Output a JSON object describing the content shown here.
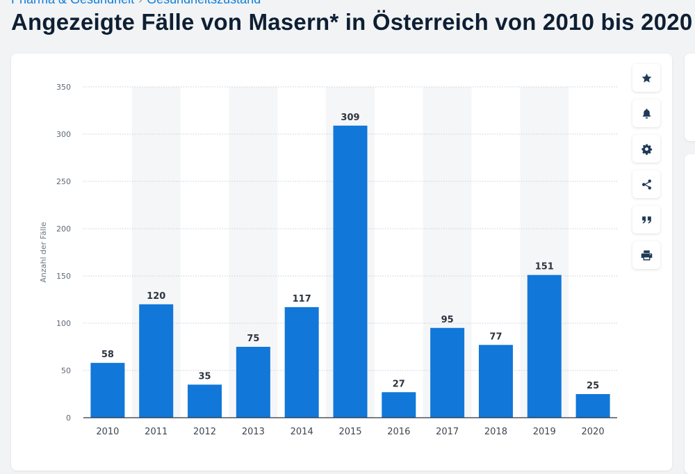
{
  "breadcrumb": {
    "first": "Pharma & Gesundheit",
    "second": "Gesundheitszustand"
  },
  "page": {
    "title": "Angezeigte Fälle von Masern* in Österreich von 2010 bis 2020"
  },
  "toolbar": {
    "favorite_icon": "star-icon",
    "alert_icon": "bell-icon",
    "settings_icon": "gear-icon",
    "share_icon": "share-icon",
    "cite_icon": "quote-icon",
    "print_icon": "printer-icon"
  },
  "colors": {
    "bar": "#1177d9",
    "accent": "#0f7ed8",
    "title": "#0e1f33"
  },
  "chart_data": {
    "type": "bar",
    "title": "Angezeigte Fälle von Masern* in Österreich von 2010 bis 2020",
    "xlabel": "",
    "ylabel": "Anzahl der Fälle",
    "categories": [
      "2010",
      "2011",
      "2012",
      "2013",
      "2014",
      "2015",
      "2016",
      "2017",
      "2018",
      "2019",
      "2020"
    ],
    "values": [
      58,
      120,
      35,
      75,
      117,
      309,
      27,
      95,
      77,
      151,
      25
    ],
    "ylim": [
      0,
      350
    ],
    "yticks": [
      0,
      50,
      100,
      150,
      200,
      250,
      300,
      350
    ],
    "grid": true,
    "data_labels": true
  }
}
